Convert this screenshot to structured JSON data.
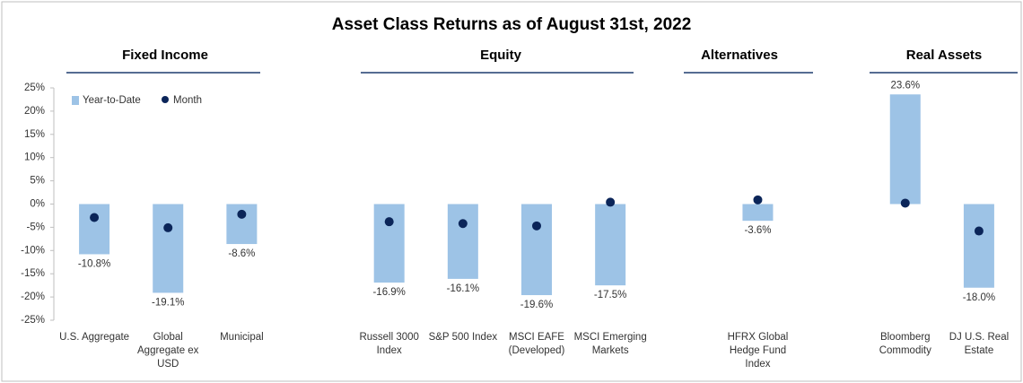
{
  "chart_data": {
    "type": "bar",
    "title": "Asset Class Returns as of August 31st, 2022",
    "groups": [
      "Fixed Income",
      "Equity",
      "Alternatives",
      "Real Assets"
    ],
    "categories": [
      "U.S. Aggregate",
      "Global\nAggregate ex\nUSD",
      "Municipal",
      null,
      "Russell 3000\nIndex",
      "S&P 500 Index",
      "MSCI EAFE\n(Developed)",
      "MSCI Emerging\nMarkets",
      null,
      "HFRX Global\nHedge Fund\nIndex",
      null,
      "Bloomberg\nCommodity",
      "DJ U.S. Real\nEstate"
    ],
    "series": [
      {
        "name": "Year-to-Date",
        "color": "#9dc3e6",
        "values": [
          -10.8,
          -19.1,
          -8.6,
          null,
          -16.9,
          -16.1,
          -19.6,
          -17.5,
          null,
          -3.6,
          null,
          23.6,
          -18.0
        ],
        "value_labels": [
          "-10.8%",
          "-19.1%",
          "-8.6%",
          null,
          "-16.9%",
          "-16.1%",
          "-19.6%",
          "-17.5%",
          null,
          "-3.6%",
          null,
          "23.6%",
          "-18.0%"
        ]
      },
      {
        "name": "Month",
        "color": "#0b2559",
        "values": [
          -2.9,
          -5.1,
          -2.2,
          null,
          -3.8,
          -4.2,
          -4.7,
          0.4,
          null,
          0.9,
          null,
          0.2,
          -5.8
        ]
      }
    ],
    "ylim": [
      -25,
      25
    ],
    "yticks": [
      {
        "value": -25,
        "label": "-25%"
      },
      {
        "value": -20,
        "label": "-20%"
      },
      {
        "value": -15,
        "label": "-15%"
      },
      {
        "value": -10,
        "label": "-10%"
      },
      {
        "value": -5,
        "label": "-5%"
      },
      {
        "value": 0,
        "label": "0%"
      },
      {
        "value": 5,
        "label": "5%"
      },
      {
        "value": 10,
        "label": "10%"
      },
      {
        "value": 15,
        "label": "15%"
      },
      {
        "value": 20,
        "label": "20%"
      },
      {
        "value": 25,
        "label": "25%"
      }
    ]
  }
}
